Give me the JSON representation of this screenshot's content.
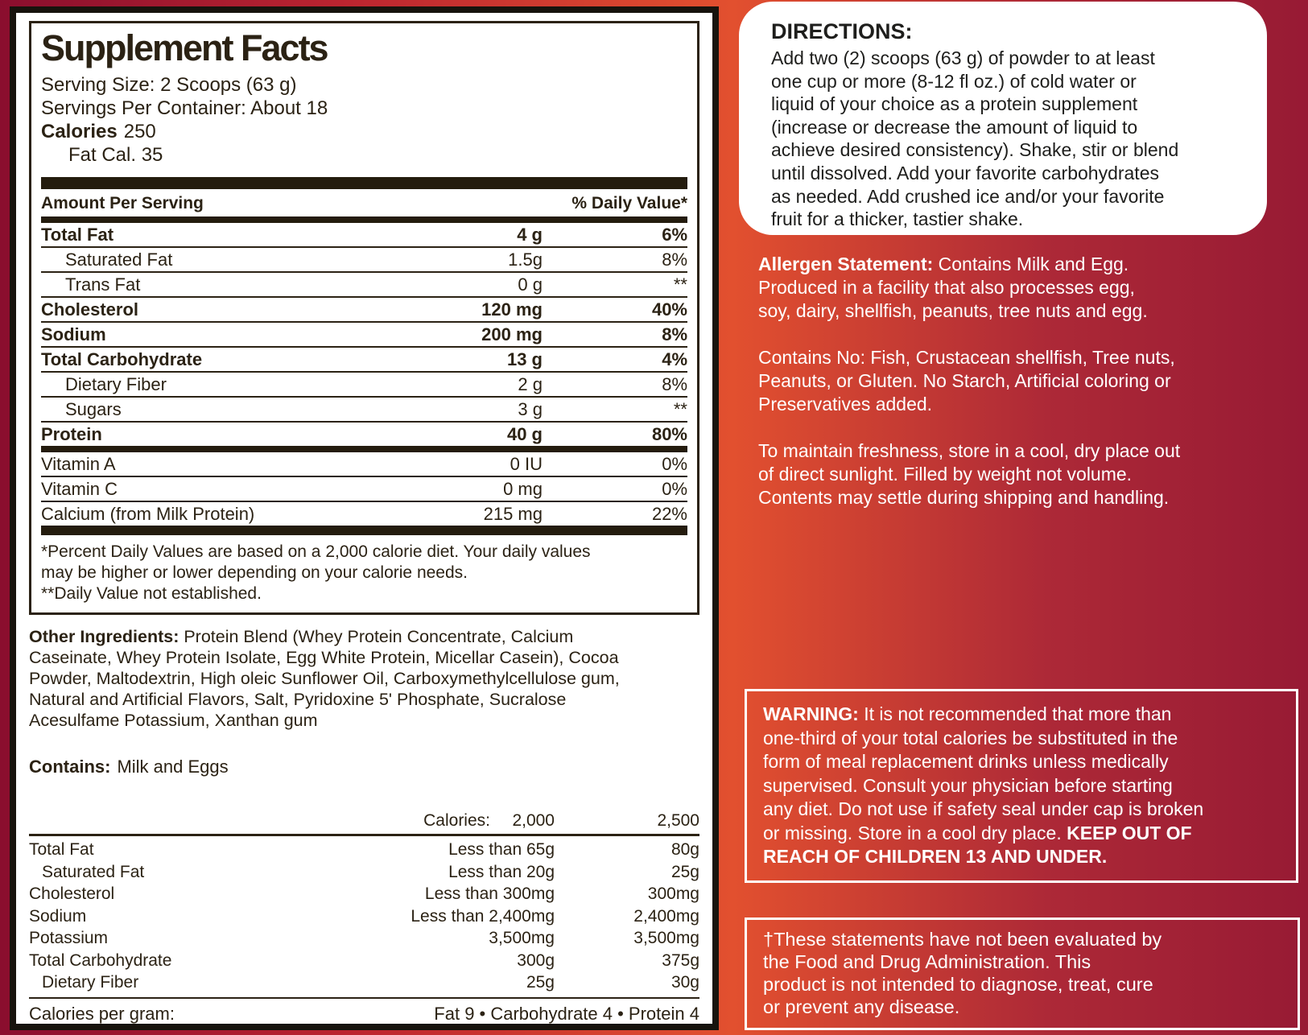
{
  "label": {
    "title": "Supplement Facts",
    "serving_size": "Serving Size: 2 Scoops (63 g)",
    "servings_per_container": "Servings Per Container: About 18",
    "calories_label": "Calories",
    "calories_value": "250",
    "fat_calories": "Fat Cal. 35",
    "columns": {
      "amount": "Amount Per Serving",
      "daily_value": "% Daily Value*"
    },
    "nutrients": [
      {
        "name": "Total Fat",
        "amount": "4 g",
        "dv": "6%"
      },
      {
        "name": "Saturated Fat",
        "amount": "1.5g",
        "dv": "8%"
      },
      {
        "name": "Trans Fat",
        "amount": "0 g",
        "dv": "**"
      },
      {
        "name": "Cholesterol",
        "amount": "120 mg",
        "dv": "40%"
      },
      {
        "name": "Sodium",
        "amount": "200 mg",
        "dv": "8%"
      },
      {
        "name": "Total Carbohydrate",
        "amount": "13 g",
        "dv": "4%"
      },
      {
        "name": "Dietary Fiber",
        "amount": "2 g",
        "dv": "8%"
      },
      {
        "name": "Sugars",
        "amount": "3 g",
        "dv": "**"
      },
      {
        "name": "Protein",
        "amount": "40 g",
        "dv": "80%"
      }
    ],
    "micronutrients": [
      {
        "name": "Vitamin A",
        "amount": "0 IU",
        "dv": "0%"
      },
      {
        "name": "Vitamin C",
        "amount": "0 mg",
        "dv": "0%"
      },
      {
        "name": "Calcium (from Milk Protein)",
        "amount": "215 mg",
        "dv": "22%"
      }
    ],
    "footnote": "*Percent Daily Values are based on a 2,000 calorie diet. Your daily values\nmay be higher or lower depending on your calorie needs.\n**Daily Value not established.",
    "other_ingredients": {
      "label": "Other Ingredients:",
      "text": " Protein Blend (Whey Protein Concentrate, Calcium\nCaseinate, Whey Protein Isolate, Egg White Protein, Micellar Casein), Cocoa\nPowder, Maltodextrin, High oleic Sunflower Oil, Carboxymethylcellulose gum,\nNatural and Artificial Flavors, Salt, Pyridoxine 5' Phosphate, Sucralose\nAcesulfame Potassium, Xanthan gum"
    },
    "contains": {
      "label": "Contains:",
      "text": "Milk and Eggs"
    },
    "reference": {
      "header_label": "Calories:",
      "col_2000": "2,000",
      "col_2500": "2,500",
      "rows": [
        {
          "label": "Total Fat",
          "v2000": "Less than 65g",
          "v2500": "80g"
        },
        {
          "label": "Saturated Fat",
          "v2000": "Less than 20g",
          "v2500": "25g"
        },
        {
          "label": "Cholesterol",
          "v2000": "Less than 300mg",
          "v2500": "300mg"
        },
        {
          "label": "Sodium",
          "v2000": "Less than 2,400mg",
          "v2500": "2,400mg"
        },
        {
          "label": "Potassium",
          "v2000": "3,500mg",
          "v2500": "3,500mg"
        },
        {
          "label": "Total Carbohydrate",
          "v2000": "300g",
          "v2500": "375g"
        },
        {
          "label": "Dietary Fiber",
          "v2000": "25g",
          "v2500": "30g"
        }
      ],
      "calories_per_gram_label": "Calories per gram:",
      "calories_per_gram_value": "Fat 9 • Carbohydrate 4 • Protein 4"
    }
  },
  "right": {
    "directions": {
      "title": "DIRECTIONS:",
      "body": "Add two (2) scoops (63 g) of powder to at least\none cup or more (8-12 fl oz.) of cold water or\nliquid of your choice as a protein supplement\n(increase or decrease the amount of liquid to\nachieve desired consistency). Shake, stir or blend\nuntil dissolved. Add your favorite carbohydrates\nas needed. Add crushed ice and/or your favorite\nfruit for a thicker, tastier shake."
    },
    "allergen": {
      "label": "Allergen Statement:",
      "body": " Contains Milk and Egg.\nProduced in a facility that also processes egg,\nsoy, dairy, shellfish, peanuts, tree nuts and egg."
    },
    "contains_no": "Contains No: Fish, Crustacean shellfish, Tree nuts,\nPeanuts, or Gluten. No Starch, Artificial coloring or\nPreservatives added.",
    "storage": "To maintain freshness, store in a cool, dry place out\nof direct sunlight. Filled by weight not volume.\nContents may settle during shipping and handling.",
    "warning": {
      "label": "WARNING:",
      "body": " It is not recommended that more than\none-third of your total calories be substituted in the\nform of meal replacement drinks unless medically\nsupervised. Consult your physician before starting\nany diet. Do not use if safety seal under cap is broken\nor missing. Store in a cool dry place. ",
      "emphasis": "KEEP OUT OF\nREACH OF CHILDREN 13 AND UNDER."
    },
    "disclaimer": "†These statements have not been evaluated by\nthe Food and Drug Administration. This\nproduct is not intended to diagnose, treat, cure\nor prevent any disease."
  },
  "colors": {
    "ink": "#2b2214",
    "bar": "#241c0e",
    "panel_bg": "#ffffff",
    "text_on_red": "#ffffff",
    "gradient_start": "#8a0e2e",
    "gradient_bright": "#e2502f",
    "gradient_end": "#971a34"
  }
}
